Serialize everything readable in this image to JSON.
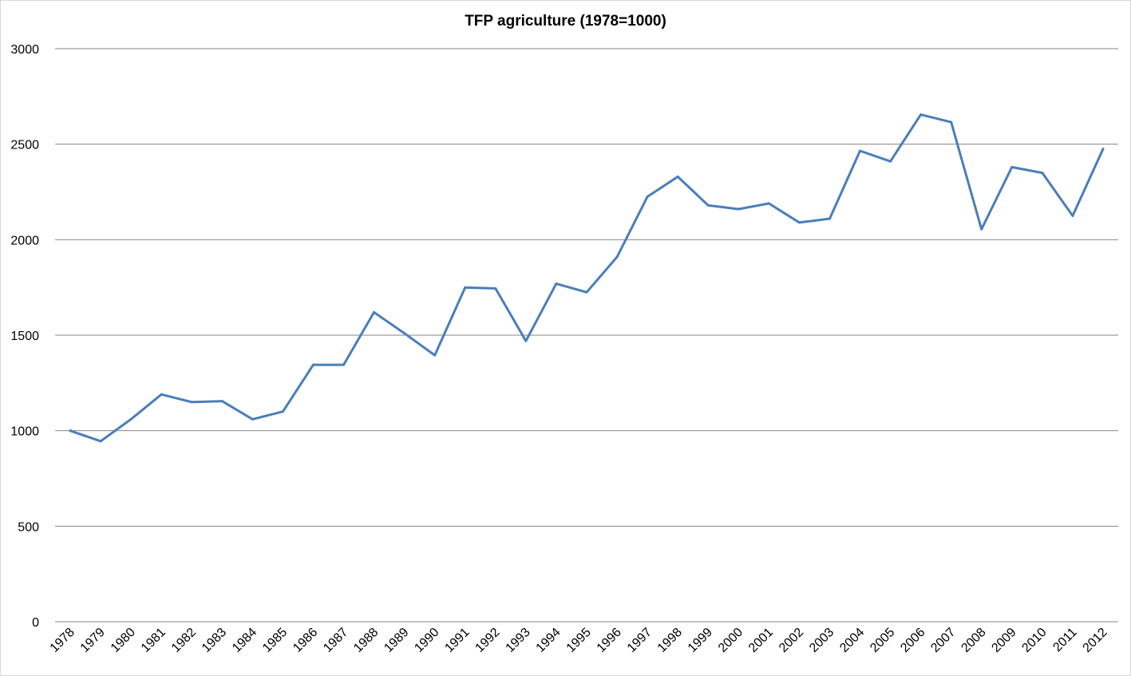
{
  "chart_data": {
    "type": "line",
    "title": "TFP agriculture (1978=1000)",
    "xlabel": "",
    "ylabel": "",
    "ylim": [
      0,
      3000
    ],
    "yticks": [
      0,
      500,
      1000,
      1500,
      2000,
      2500,
      3000
    ],
    "grid": "horizontal",
    "legend": "none",
    "categories": [
      "1978",
      "1979",
      "1980",
      "1981",
      "1982",
      "1983",
      "1984",
      "1985",
      "1986",
      "1987",
      "1988",
      "1989",
      "1990",
      "1991",
      "1992",
      "1993",
      "1994",
      "1995",
      "1996",
      "1997",
      "1998",
      "1999",
      "2000",
      "2001",
      "2002",
      "2003",
      "2004",
      "2005",
      "2006",
      "2007",
      "2008",
      "2009",
      "2010",
      "2011",
      "2012"
    ],
    "series": [
      {
        "color": "#4a7ebb",
        "values": [
          1000,
          945,
          1060,
          1190,
          1150,
          1155,
          1060,
          1100,
          1345,
          1345,
          1620,
          1510,
          1395,
          1750,
          1745,
          1470,
          1770,
          1725,
          1910,
          2225,
          2330,
          2180,
          2160,
          2190,
          2090,
          2110,
          2465,
          2410,
          2655,
          2615,
          2055,
          2380,
          2350,
          2125,
          2475
        ]
      }
    ]
  }
}
